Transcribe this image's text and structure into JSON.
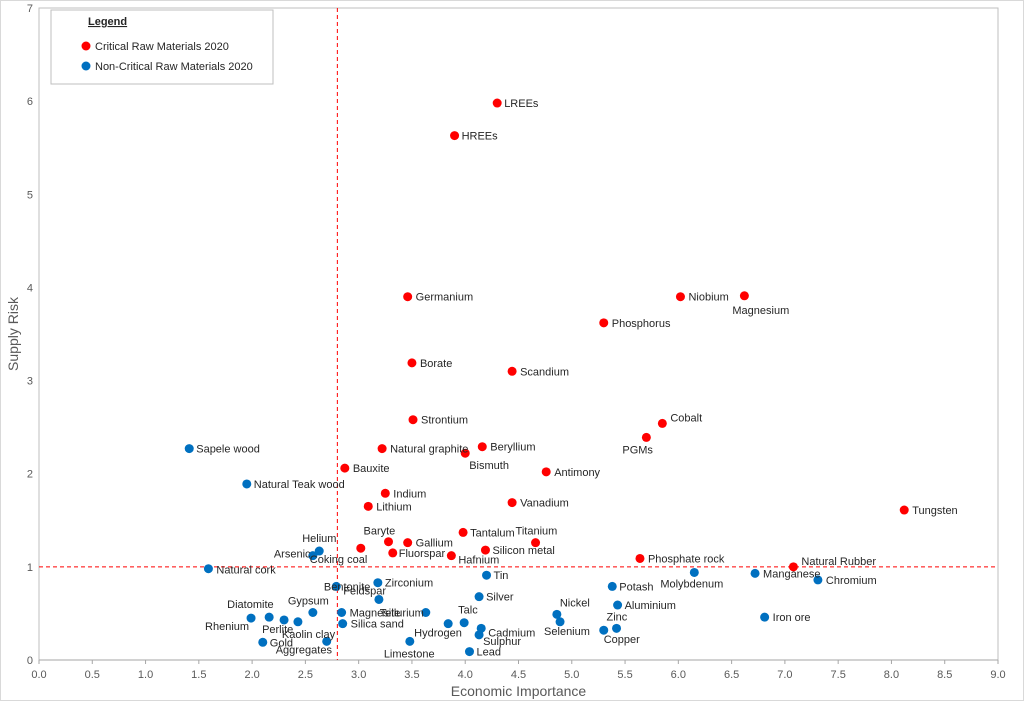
{
  "chart_data": {
    "type": "scatter",
    "title": "",
    "xlabel": "Economic Importance",
    "ylabel": "Supply Risk",
    "xlim": [
      0,
      9
    ],
    "ylim": [
      0,
      7
    ],
    "x_ticks": [
      "0.0",
      "0.5",
      "1.0",
      "1.5",
      "2.0",
      "2.5",
      "3.0",
      "3.5",
      "4.0",
      "4.5",
      "5.0",
      "5.5",
      "6.0",
      "6.5",
      "7.0",
      "7.5",
      "8.0",
      "8.5",
      "9.0"
    ],
    "y_ticks": [
      "0",
      "1",
      "2",
      "3",
      "4",
      "5",
      "6",
      "7"
    ],
    "grid": false,
    "thresholds": {
      "x": 2.8,
      "y": 1.0,
      "color": "#ff0000",
      "style": "dashed"
    },
    "legend": {
      "title": "Legend",
      "placement": "top-left",
      "entries": [
        {
          "label": "Critical Raw Materials 2020",
          "color": "#ff0000"
        },
        {
          "label": "Non-Critical Raw Materials 2020",
          "color": "#0070c0"
        }
      ]
    },
    "series": [
      {
        "name": "Critical Raw Materials 2020",
        "color": "#ff0000",
        "points": [
          {
            "label": "LREEs",
            "x": 4.3,
            "y": 5.98
          },
          {
            "label": "HREEs",
            "x": 3.9,
            "y": 5.63
          },
          {
            "label": "Germanium",
            "x": 3.46,
            "y": 3.9
          },
          {
            "label": "Niobium",
            "x": 6.02,
            "y": 3.9
          },
          {
            "label": "Magnesium",
            "x": 6.62,
            "y": 3.91
          },
          {
            "label": "Phosphorus",
            "x": 5.3,
            "y": 3.62
          },
          {
            "label": "Borate",
            "x": 3.5,
            "y": 3.19
          },
          {
            "label": "Scandium",
            "x": 4.44,
            "y": 3.1
          },
          {
            "label": "Strontium",
            "x": 3.51,
            "y": 2.58
          },
          {
            "label": "Cobalt",
            "x": 5.85,
            "y": 2.54
          },
          {
            "label": "PGMs",
            "x": 5.7,
            "y": 2.39
          },
          {
            "label": "Natural graphite",
            "x": 3.22,
            "y": 2.27
          },
          {
            "label": "Beryllium",
            "x": 4.16,
            "y": 2.29
          },
          {
            "label": "Bismuth",
            "x": 4.0,
            "y": 2.22
          },
          {
            "label": "Bauxite",
            "x": 2.87,
            "y": 2.06
          },
          {
            "label": "Antimony",
            "x": 4.76,
            "y": 2.02
          },
          {
            "label": "Indium",
            "x": 3.25,
            "y": 1.79
          },
          {
            "label": "Vanadium",
            "x": 4.44,
            "y": 1.69
          },
          {
            "label": "Lithium",
            "x": 3.09,
            "y": 1.65
          },
          {
            "label": "Tungsten",
            "x": 8.12,
            "y": 1.61
          },
          {
            "label": "Tantalum",
            "x": 3.98,
            "y": 1.37
          },
          {
            "label": "Titanium",
            "x": 4.66,
            "y": 1.26
          },
          {
            "label": "Baryte",
            "x": 3.28,
            "y": 1.27
          },
          {
            "label": "Gallium",
            "x": 3.46,
            "y": 1.26
          },
          {
            "label": "Coking coal",
            "x": 3.02,
            "y": 1.2
          },
          {
            "label": "Fluorspar",
            "x": 3.32,
            "y": 1.15
          },
          {
            "label": "Silicon metal",
            "x": 4.19,
            "y": 1.18
          },
          {
            "label": "Hafnium",
            "x": 3.87,
            "y": 1.12
          },
          {
            "label": "Phosphate rock",
            "x": 5.64,
            "y": 1.09
          },
          {
            "label": "Natural Rubber",
            "x": 7.08,
            "y": 1.0
          }
        ]
      },
      {
        "name": "Non-Critical Raw Materials 2020",
        "color": "#0070c0",
        "points": [
          {
            "label": "Sapele wood",
            "x": 1.41,
            "y": 2.27
          },
          {
            "label": "Natural Teak wood",
            "x": 1.95,
            "y": 1.89
          },
          {
            "label": "Helium",
            "x": 2.63,
            "y": 1.17
          },
          {
            "label": "Arsenic",
            "x": 2.57,
            "y": 1.12
          },
          {
            "label": "Natural cork",
            "x": 1.59,
            "y": 0.98
          },
          {
            "label": "Tin",
            "x": 4.2,
            "y": 0.91
          },
          {
            "label": "Molybdenum",
            "x": 6.15,
            "y": 0.94
          },
          {
            "label": "Manganese",
            "x": 6.72,
            "y": 0.93
          },
          {
            "label": "Chromium",
            "x": 7.31,
            "y": 0.86
          },
          {
            "label": "Zirconium",
            "x": 3.18,
            "y": 0.83
          },
          {
            "label": "Feldspar",
            "x": 2.79,
            "y": 0.79
          },
          {
            "label": "Potash",
            "x": 5.38,
            "y": 0.79
          },
          {
            "label": "Silver",
            "x": 4.13,
            "y": 0.68
          },
          {
            "label": "Bentonite",
            "x": 3.19,
            "y": 0.65
          },
          {
            "label": "Aluminium",
            "x": 5.43,
            "y": 0.59
          },
          {
            "label": "Gypsum",
            "x": 2.57,
            "y": 0.51
          },
          {
            "label": "Diatomite",
            "x": 2.16,
            "y": 0.46
          },
          {
            "label": "Tellurium",
            "x": 3.63,
            "y": 0.51
          },
          {
            "label": "Nickel",
            "x": 4.86,
            "y": 0.49
          },
          {
            "label": "Iron ore",
            "x": 6.81,
            "y": 0.46
          },
          {
            "label": "Rhenium",
            "x": 1.99,
            "y": 0.45
          },
          {
            "label": "Perlite",
            "x": 2.3,
            "y": 0.43
          },
          {
            "label": "Magnesite",
            "x": 2.84,
            "y": 0.51
          },
          {
            "label": "Silica sand",
            "x": 2.85,
            "y": 0.39
          },
          {
            "label": "Kaolin clay",
            "x": 2.43,
            "y": 0.41
          },
          {
            "label": "Hydrogen",
            "x": 3.84,
            "y": 0.39
          },
          {
            "label": "Talc",
            "x": 3.99,
            "y": 0.4
          },
          {
            "label": "Selenium",
            "x": 4.89,
            "y": 0.41
          },
          {
            "label": "Cadmium",
            "x": 4.15,
            "y": 0.34
          },
          {
            "label": "Zinc",
            "x": 5.42,
            "y": 0.34
          },
          {
            "label": "Copper",
            "x": 5.3,
            "y": 0.32
          },
          {
            "label": "Sulphur",
            "x": 4.13,
            "y": 0.27
          },
          {
            "label": "Gold",
            "x": 2.1,
            "y": 0.19
          },
          {
            "label": "Aggregates",
            "x": 2.7,
            "y": 0.2
          },
          {
            "label": "Limestone",
            "x": 3.48,
            "y": 0.2
          },
          {
            "label": "Lead",
            "x": 4.04,
            "y": 0.09
          }
        ]
      }
    ]
  }
}
